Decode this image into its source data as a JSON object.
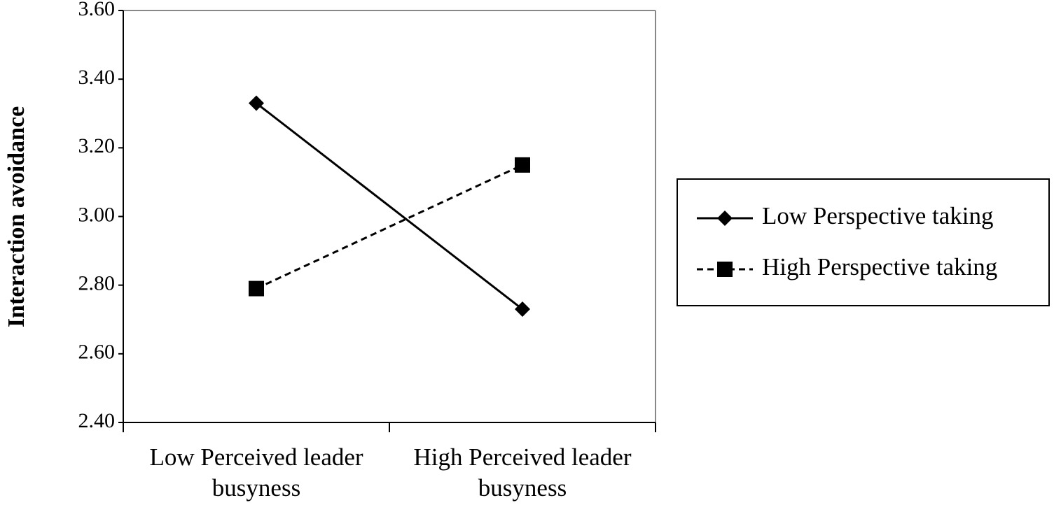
{
  "chart_data": {
    "type": "line",
    "y_label": "Interaction avoidance",
    "categories": [
      "Low Perceived leader busyness",
      "High Perceived leader busyness"
    ],
    "series": [
      {
        "name": "Low Perspective taking",
        "color": "#000000",
        "marker": "diamond",
        "dash": false,
        "values": [
          3.33,
          2.73
        ]
      },
      {
        "name": "High Perspective taking",
        "color": "#000000",
        "marker": "square",
        "dash": true,
        "values": [
          2.79,
          3.15
        ]
      }
    ],
    "ylim": [
      2.4,
      3.6
    ],
    "yticks": [
      {
        "value": 2.4,
        "label": "2.40"
      },
      {
        "value": 2.6,
        "label": "2.60"
      },
      {
        "value": 2.8,
        "label": "2.80"
      },
      {
        "value": 3.0,
        "label": "3.00"
      },
      {
        "value": 3.2,
        "label": "3.20"
      },
      {
        "value": 3.4,
        "label": "3.40"
      },
      {
        "value": 3.6,
        "label": "3.60"
      }
    ],
    "grid": false,
    "legend": "right"
  }
}
